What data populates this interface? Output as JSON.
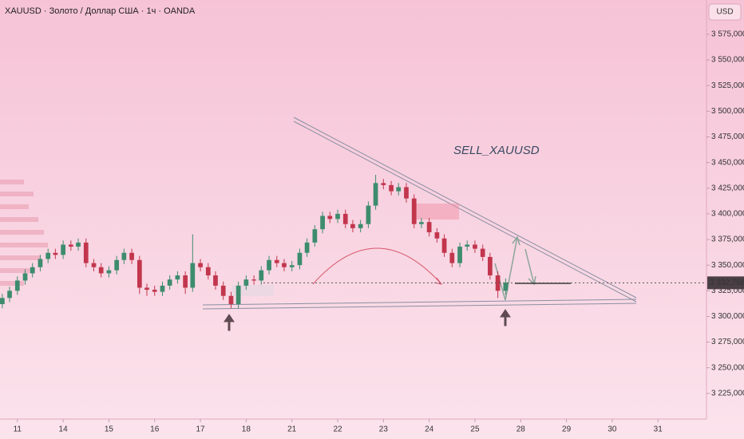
{
  "chart_data": {
    "type": "candlestick",
    "title": "XAUUSD · Золото / Доллар США · 1ч · OANDA",
    "currency": "USD",
    "annotation": "SELL_XAUUSD",
    "up_color": "#3d8c6e",
    "down_color": "#c2364d",
    "xlim": [
      -0.38,
      15.06
    ],
    "ylim": [
      3200,
      3608.4
    ],
    "xticks": [
      {
        "value": 0,
        "label": "11"
      },
      {
        "value": 1,
        "label": "14"
      },
      {
        "value": 2,
        "label": "15"
      },
      {
        "value": 3,
        "label": "16"
      },
      {
        "value": 4,
        "label": "17"
      },
      {
        "value": 5,
        "label": "18"
      },
      {
        "value": 6,
        "label": "21"
      },
      {
        "value": 7,
        "label": "22"
      },
      {
        "value": 8,
        "label": "23"
      },
      {
        "value": 9,
        "label": "24"
      },
      {
        "value": 10,
        "label": "25"
      },
      {
        "value": 11,
        "label": "28"
      },
      {
        "value": 12,
        "label": "29"
      },
      {
        "value": 13,
        "label": "30"
      },
      {
        "value": 14,
        "label": "31"
      }
    ],
    "yticks": [
      {
        "value": 3225,
        "label": "3 225,000"
      },
      {
        "value": 3250,
        "label": "3 250,000"
      },
      {
        "value": 3275,
        "label": "3 275,000"
      },
      {
        "value": 3300,
        "label": "3 300,000"
      },
      {
        "value": 3325,
        "label": "3 325,000"
      },
      {
        "value": 3350,
        "label": "3 350,000"
      },
      {
        "value": 3375,
        "label": "3 375,000"
      },
      {
        "value": 3400,
        "label": "3 400,000"
      },
      {
        "value": 3425,
        "label": "3 425,000"
      },
      {
        "value": 3450,
        "label": "3 450,000"
      },
      {
        "value": 3475,
        "label": "3 475,000"
      },
      {
        "value": 3500,
        "label": "3 500,000"
      },
      {
        "value": 3525,
        "label": "3 525,000"
      },
      {
        "value": 3550,
        "label": "3 550,000"
      },
      {
        "value": 3575,
        "label": "3 575,000"
      }
    ],
    "last_price": {
      "value": 3332.768,
      "label": "3 332,768"
    },
    "x": [
      -0.33,
      -0.17,
      0,
      0.17,
      0.33,
      0.5,
      0.67,
      0.83,
      1,
      1.17,
      1.33,
      1.5,
      1.67,
      1.83,
      2,
      2.17,
      2.33,
      2.5,
      2.67,
      2.83,
      3,
      3.17,
      3.33,
      3.5,
      3.67,
      3.83,
      4,
      4.17,
      4.33,
      4.5,
      4.67,
      4.83,
      5,
      5.17,
      5.33,
      5.5,
      5.67,
      5.83,
      6,
      6.17,
      6.33,
      6.5,
      6.67,
      6.83,
      7,
      7.17,
      7.33,
      7.5,
      7.67,
      7.83,
      8,
      8.17,
      8.33,
      8.5,
      8.67,
      8.83,
      9,
      9.17,
      9.33,
      9.5,
      9.67,
      9.83,
      10,
      10.17,
      10.33,
      10.5,
      10.67
    ],
    "open": [
      3312,
      3318,
      3325,
      3335,
      3342,
      3348,
      3356,
      3362,
      3360,
      3370,
      3368,
      3372,
      3352,
      3348,
      3342,
      3345,
      3355,
      3362,
      3355,
      3328,
      3326,
      3324,
      3330,
      3336,
      3340,
      3328,
      3352,
      3348,
      3340,
      3330,
      3320,
      3312,
      3330,
      3336,
      3335,
      3345,
      3355,
      3352,
      3348,
      3350,
      3362,
      3372,
      3385,
      3398,
      3395,
      3400,
      3390,
      3386,
      3390,
      3408,
      3430,
      3428,
      3422,
      3426,
      3415,
      3390,
      3392,
      3382,
      3376,
      3362,
      3352,
      3368,
      3370,
      3366,
      3358,
      3340,
      3325
    ],
    "high": [
      3322,
      3329,
      3339,
      3346,
      3352,
      3360,
      3366,
      3366,
      3374,
      3374,
      3376,
      3376,
      3356,
      3352,
      3349,
      3359,
      3366,
      3366,
      3359,
      3332,
      3330,
      3334,
      3340,
      3344,
      3344,
      3380,
      3356,
      3352,
      3344,
      3334,
      3324,
      3334,
      3340,
      3340,
      3349,
      3359,
      3359,
      3356,
      3354,
      3366,
      3376,
      3389,
      3402,
      3402,
      3404,
      3404,
      3394,
      3394,
      3412,
      3438,
      3434,
      3432,
      3430,
      3430,
      3419,
      3396,
      3396,
      3386,
      3380,
      3366,
      3372,
      3374,
      3374,
      3370,
      3362,
      3344,
      3337
    ],
    "low": [
      3308,
      3314,
      3321,
      3331,
      3338,
      3344,
      3352,
      3356,
      3356,
      3364,
      3364,
      3348,
      3344,
      3338,
      3338,
      3341,
      3351,
      3351,
      3322,
      3320,
      3320,
      3320,
      3326,
      3332,
      3322,
      3324,
      3344,
      3336,
      3326,
      3316,
      3308,
      3308,
      3326,
      3331,
      3331,
      3341,
      3348,
      3344,
      3344,
      3346,
      3358,
      3368,
      3381,
      3391,
      3391,
      3386,
      3382,
      3382,
      3386,
      3404,
      3424,
      3418,
      3418,
      3411,
      3386,
      3386,
      3378,
      3372,
      3358,
      3348,
      3348,
      3364,
      3362,
      3354,
      3336,
      3318,
      3321
    ],
    "close": [
      3318,
      3325,
      3335,
      3342,
      3348,
      3356,
      3362,
      3360,
      3370,
      3368,
      3372,
      3352,
      3348,
      3342,
      3345,
      3355,
      3362,
      3355,
      3328,
      3326,
      3324,
      3330,
      3336,
      3340,
      3328,
      3352,
      3348,
      3340,
      3330,
      3320,
      3312,
      3330,
      3336,
      3335,
      3345,
      3355,
      3352,
      3348,
      3350,
      3362,
      3372,
      3385,
      3398,
      3395,
      3400,
      3390,
      3386,
      3390,
      3408,
      3430,
      3428,
      3422,
      3426,
      3415,
      3390,
      3392,
      3382,
      3376,
      3362,
      3352,
      3368,
      3370,
      3366,
      3358,
      3340,
      3325,
      3333
    ]
  }
}
